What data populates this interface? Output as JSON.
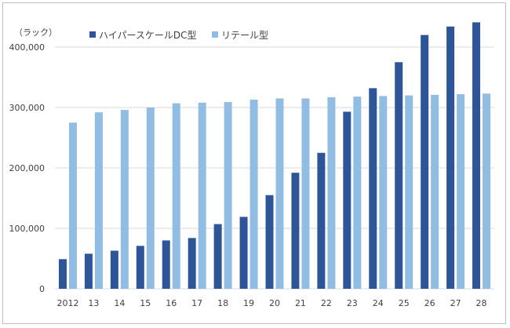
{
  "chart_data": {
    "type": "bar",
    "unit_label": "（ラック）",
    "categories": [
      "2012",
      "13",
      "14",
      "15",
      "16",
      "17",
      "18",
      "19",
      "20",
      "21",
      "22",
      "23",
      "24",
      "25",
      "26",
      "27",
      "28"
    ],
    "series": [
      {
        "name": "ハイパースケールDC型",
        "color": "#2e5597",
        "values": [
          49000,
          58000,
          63000,
          71000,
          80000,
          84000,
          107000,
          119000,
          155000,
          192000,
          225000,
          293000,
          332000,
          375000,
          420000,
          434000,
          441000
        ]
      },
      {
        "name": "リテール型",
        "color": "#91bde2",
        "values": [
          275000,
          292000,
          296000,
          300000,
          307000,
          308000,
          309000,
          313000,
          315000,
          315000,
          317000,
          318000,
          319000,
          320000,
          321000,
          322000,
          323000
        ]
      }
    ],
    "yticks": [
      "0",
      "100,000",
      "200,000",
      "300,000",
      "400,000"
    ],
    "ylim": [
      0,
      440000
    ],
    "grid": true,
    "legend": "top-center"
  }
}
